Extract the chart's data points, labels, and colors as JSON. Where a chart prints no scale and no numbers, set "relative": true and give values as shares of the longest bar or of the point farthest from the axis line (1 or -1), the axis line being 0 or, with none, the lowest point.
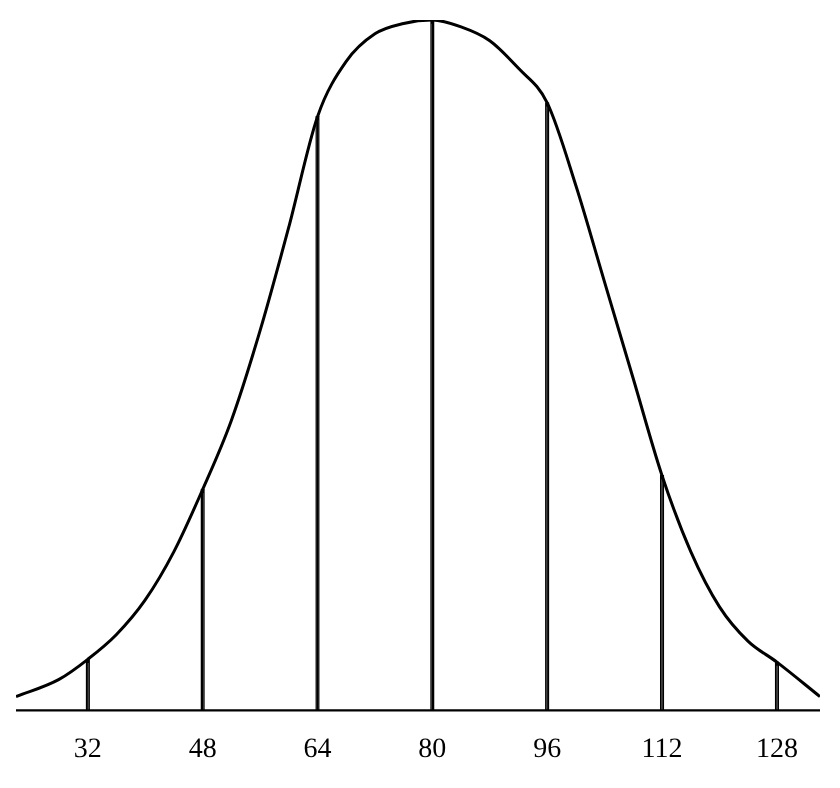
{
  "chart_data": {
    "type": "line",
    "relative": true,
    "grid": false,
    "legend": false,
    "marker": "none",
    "line_style": "solid",
    "x": [
      22,
      28,
      32,
      36,
      40,
      44,
      48,
      52,
      56,
      60,
      64,
      68,
      72,
      76,
      80,
      84,
      88,
      92,
      96,
      100,
      104,
      108,
      112,
      116,
      120,
      124,
      128,
      134
    ],
    "series": [
      {
        "color": "#000000",
        "values": [
          0.02,
          0.045,
          0.074,
          0.11,
          0.16,
          0.23,
          0.32,
          0.42,
          0.55,
          0.7,
          0.86,
          0.94,
          0.98,
          0.995,
          1,
          0.99,
          0.97,
          0.93,
          0.88,
          0.76,
          0.62,
          0.48,
          0.34,
          0.23,
          0.15,
          0.1,
          0.07,
          0.02
        ]
      },
      {
        "type": "bar",
        "color": "#000000",
        "x": [
          32,
          48,
          64,
          80,
          96,
          112,
          128
        ],
        "values": [
          0.074,
          0.32,
          0.86,
          1,
          0.88,
          0.34,
          0.07
        ]
      }
    ],
    "xlim": [
      22,
      134
    ],
    "xticks": [
      32,
      48,
      64,
      80,
      96,
      112,
      128
    ]
  }
}
